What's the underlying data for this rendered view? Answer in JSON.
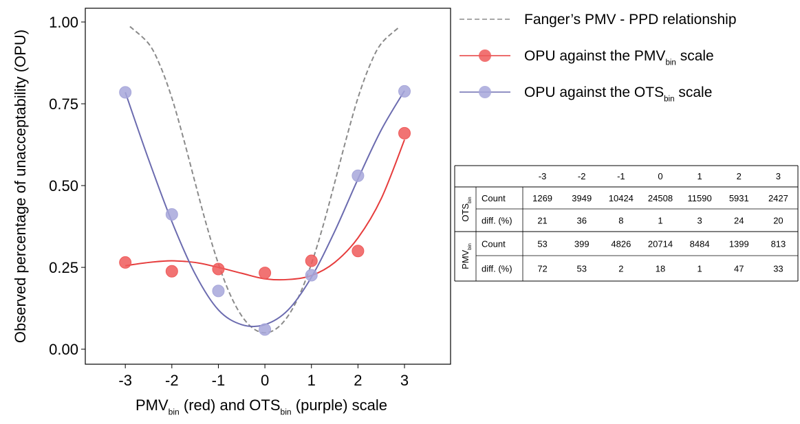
{
  "chart_data": {
    "type": "scatter",
    "ylabel": "Observed percentage of unacceptability (OPU)",
    "xlabel": [
      {
        "text": "PMV"
      },
      {
        "text": "bin",
        "sub": true
      },
      {
        "text": " (red) and OTS"
      },
      {
        "text": "bin",
        "sub": true
      },
      {
        "text": " (purple) scale"
      }
    ],
    "xlim": [
      -3.86,
      3.99
    ],
    "ylim": [
      -0.046,
      1.042
    ],
    "xticks": [
      -3,
      -2,
      -1,
      0,
      1,
      2,
      3
    ],
    "yticks": [
      {
        "value": 0,
        "label": "0.00"
      },
      {
        "value": 0.25,
        "label": "0.25"
      },
      {
        "value": 0.5,
        "label": "0.50"
      },
      {
        "value": 0.75,
        "label": "0.75"
      },
      {
        "value": 1,
        "label": "1.00"
      }
    ],
    "series": [
      {
        "name": [
          {
            "text": "Fanger’s PMV - PPD relationship"
          }
        ],
        "color": "#8a8a8a",
        "style": "dashed",
        "x": [
          -2.9,
          -2.5,
          -2.25,
          -2,
          -1.75,
          -1.5,
          -1.25,
          -1,
          -0.75,
          -0.5,
          -0.25,
          0,
          0.25,
          0.5,
          0.75,
          1,
          1.25,
          1.5,
          1.75,
          2,
          2.25,
          2.5,
          2.9
        ],
        "values": [
          0.986,
          0.934,
          0.866,
          0.768,
          0.644,
          0.509,
          0.377,
          0.261,
          0.168,
          0.102,
          0.063,
          0.05,
          0.063,
          0.102,
          0.168,
          0.261,
          0.377,
          0.509,
          0.644,
          0.768,
          0.866,
          0.934,
          0.986
        ]
      },
      {
        "name": [
          {
            "text": "OPU against the PMV"
          },
          {
            "text": "bin",
            "sub": true
          },
          {
            "text": " scale"
          }
        ],
        "color": "#e63c3c",
        "marker_color": "#ef5a5a",
        "x": [
          -3,
          -2,
          -1,
          0,
          1,
          2,
          3
        ],
        "values": [
          0.265,
          0.238,
          0.245,
          0.233,
          0.27,
          0.3,
          0.66
        ],
        "fit_x": [
          -3,
          -2.5,
          -2,
          -1.5,
          -1,
          -0.5,
          0,
          0.5,
          1,
          1.5,
          2,
          2.5,
          3
        ],
        "fit_values": [
          0.255,
          0.265,
          0.27,
          0.265,
          0.25,
          0.232,
          0.215,
          0.213,
          0.225,
          0.265,
          0.34,
          0.46,
          0.64
        ]
      },
      {
        "name": [
          {
            "text": "OPU against the OTS"
          },
          {
            "text": "bin",
            "sub": true
          },
          {
            "text": " scale"
          }
        ],
        "color": "#6b6baf",
        "marker_color": "#a7a7da",
        "x": [
          -3,
          -2,
          -1,
          0,
          1,
          2,
          3
        ],
        "values": [
          0.785,
          0.412,
          0.178,
          0.06,
          0.226,
          0.53,
          0.788
        ],
        "fit_x": [
          -3,
          -2.5,
          -2,
          -1.5,
          -1,
          -0.5,
          0,
          0.5,
          1,
          1.5,
          2,
          2.5,
          3
        ],
        "fit_values": [
          0.785,
          0.58,
          0.39,
          0.23,
          0.12,
          0.075,
          0.075,
          0.12,
          0.22,
          0.36,
          0.52,
          0.67,
          0.79
        ]
      }
    ]
  },
  "table": {
    "columns": [
      -3,
      -2,
      -1,
      0,
      1,
      2,
      3
    ],
    "groups": [
      {
        "label": [
          {
            "text": "OTS"
          },
          {
            "text": "bin",
            "sub": true
          }
        ],
        "rows": [
          {
            "label": "Count",
            "values": [
              1269,
              3949,
              10424,
              24508,
              11590,
              5931,
              2427
            ]
          },
          {
            "label": "diff. (%)",
            "values": [
              21,
              36,
              8,
              1,
              3,
              24,
              20
            ]
          }
        ]
      },
      {
        "label": [
          {
            "text": "PMV"
          },
          {
            "text": "bin",
            "sub": true
          }
        ],
        "rows": [
          {
            "label": "Count",
            "values": [
              53,
              399,
              4826,
              20714,
              8484,
              1399,
              813
            ]
          },
          {
            "label": "diff. (%)",
            "values": [
              72,
              53,
              2,
              18,
              1,
              47,
              33
            ]
          }
        ]
      }
    ]
  }
}
